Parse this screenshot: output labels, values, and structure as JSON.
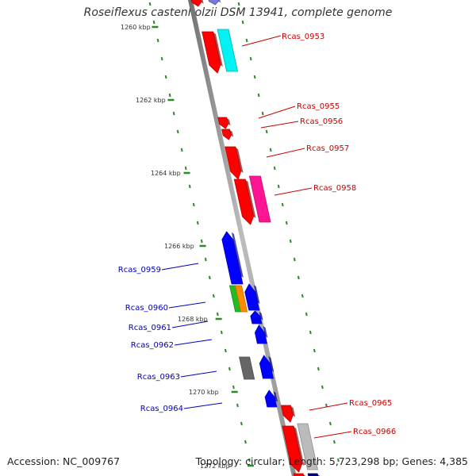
{
  "header": {
    "title": "Roseiflexus castenholzii DSM 13941, complete genome"
  },
  "footer": {
    "accession": "Accession: NC_009767",
    "summary": "Topology: circular; Length: 5,723,298 bp; Genes: 4,385"
  },
  "colors": {
    "forward_label": "#cc0000",
    "reverse_label": "#0000bb",
    "backbone": "#888888",
    "ticks": "#2a8a2a"
  },
  "ticks": [
    {
      "label": "1260 kbp"
    },
    {
      "label": "1262 kbp"
    },
    {
      "label": "1264 kbp"
    },
    {
      "label": "1266 kbp"
    },
    {
      "label": "1268 kbp"
    },
    {
      "label": "1270 kbp"
    },
    {
      "label": "1272 kbp"
    }
  ],
  "gene_labels": [
    {
      "name": "Rcas_0953",
      "strand": "forward"
    },
    {
      "name": "Rcas_0955",
      "strand": "forward"
    },
    {
      "name": "Rcas_0956",
      "strand": "forward"
    },
    {
      "name": "Rcas_0957",
      "strand": "forward"
    },
    {
      "name": "Rcas_0958",
      "strand": "forward"
    },
    {
      "name": "Rcas_0959",
      "strand": "reverse"
    },
    {
      "name": "Rcas_0960",
      "strand": "reverse"
    },
    {
      "name": "Rcas_0961",
      "strand": "reverse"
    },
    {
      "name": "Rcas_0962",
      "strand": "reverse"
    },
    {
      "name": "Rcas_0963",
      "strand": "reverse"
    },
    {
      "name": "Rcas_0964",
      "strand": "reverse"
    },
    {
      "name": "Rcas_0965",
      "strand": "forward"
    },
    {
      "name": "Rcas_0966",
      "strand": "forward"
    }
  ],
  "features": [
    {
      "name": "feature-red",
      "color": "#ff0000"
    },
    {
      "name": "feature-cyan",
      "color": "#00f2f2"
    },
    {
      "name": "feature-pink",
      "color": "#ff1493"
    },
    {
      "name": "feature-blue",
      "color": "#0000ff"
    },
    {
      "name": "feature-green",
      "color": "#22bb22"
    },
    {
      "name": "feature-orange",
      "color": "#ff8c00"
    },
    {
      "name": "feature-gray",
      "color": "#666666"
    },
    {
      "name": "feature-lightgray",
      "color": "#bbbbbb"
    },
    {
      "name": "feature-purple",
      "color": "#7777dd"
    },
    {
      "name": "feature-navy",
      "color": "#000088"
    }
  ]
}
